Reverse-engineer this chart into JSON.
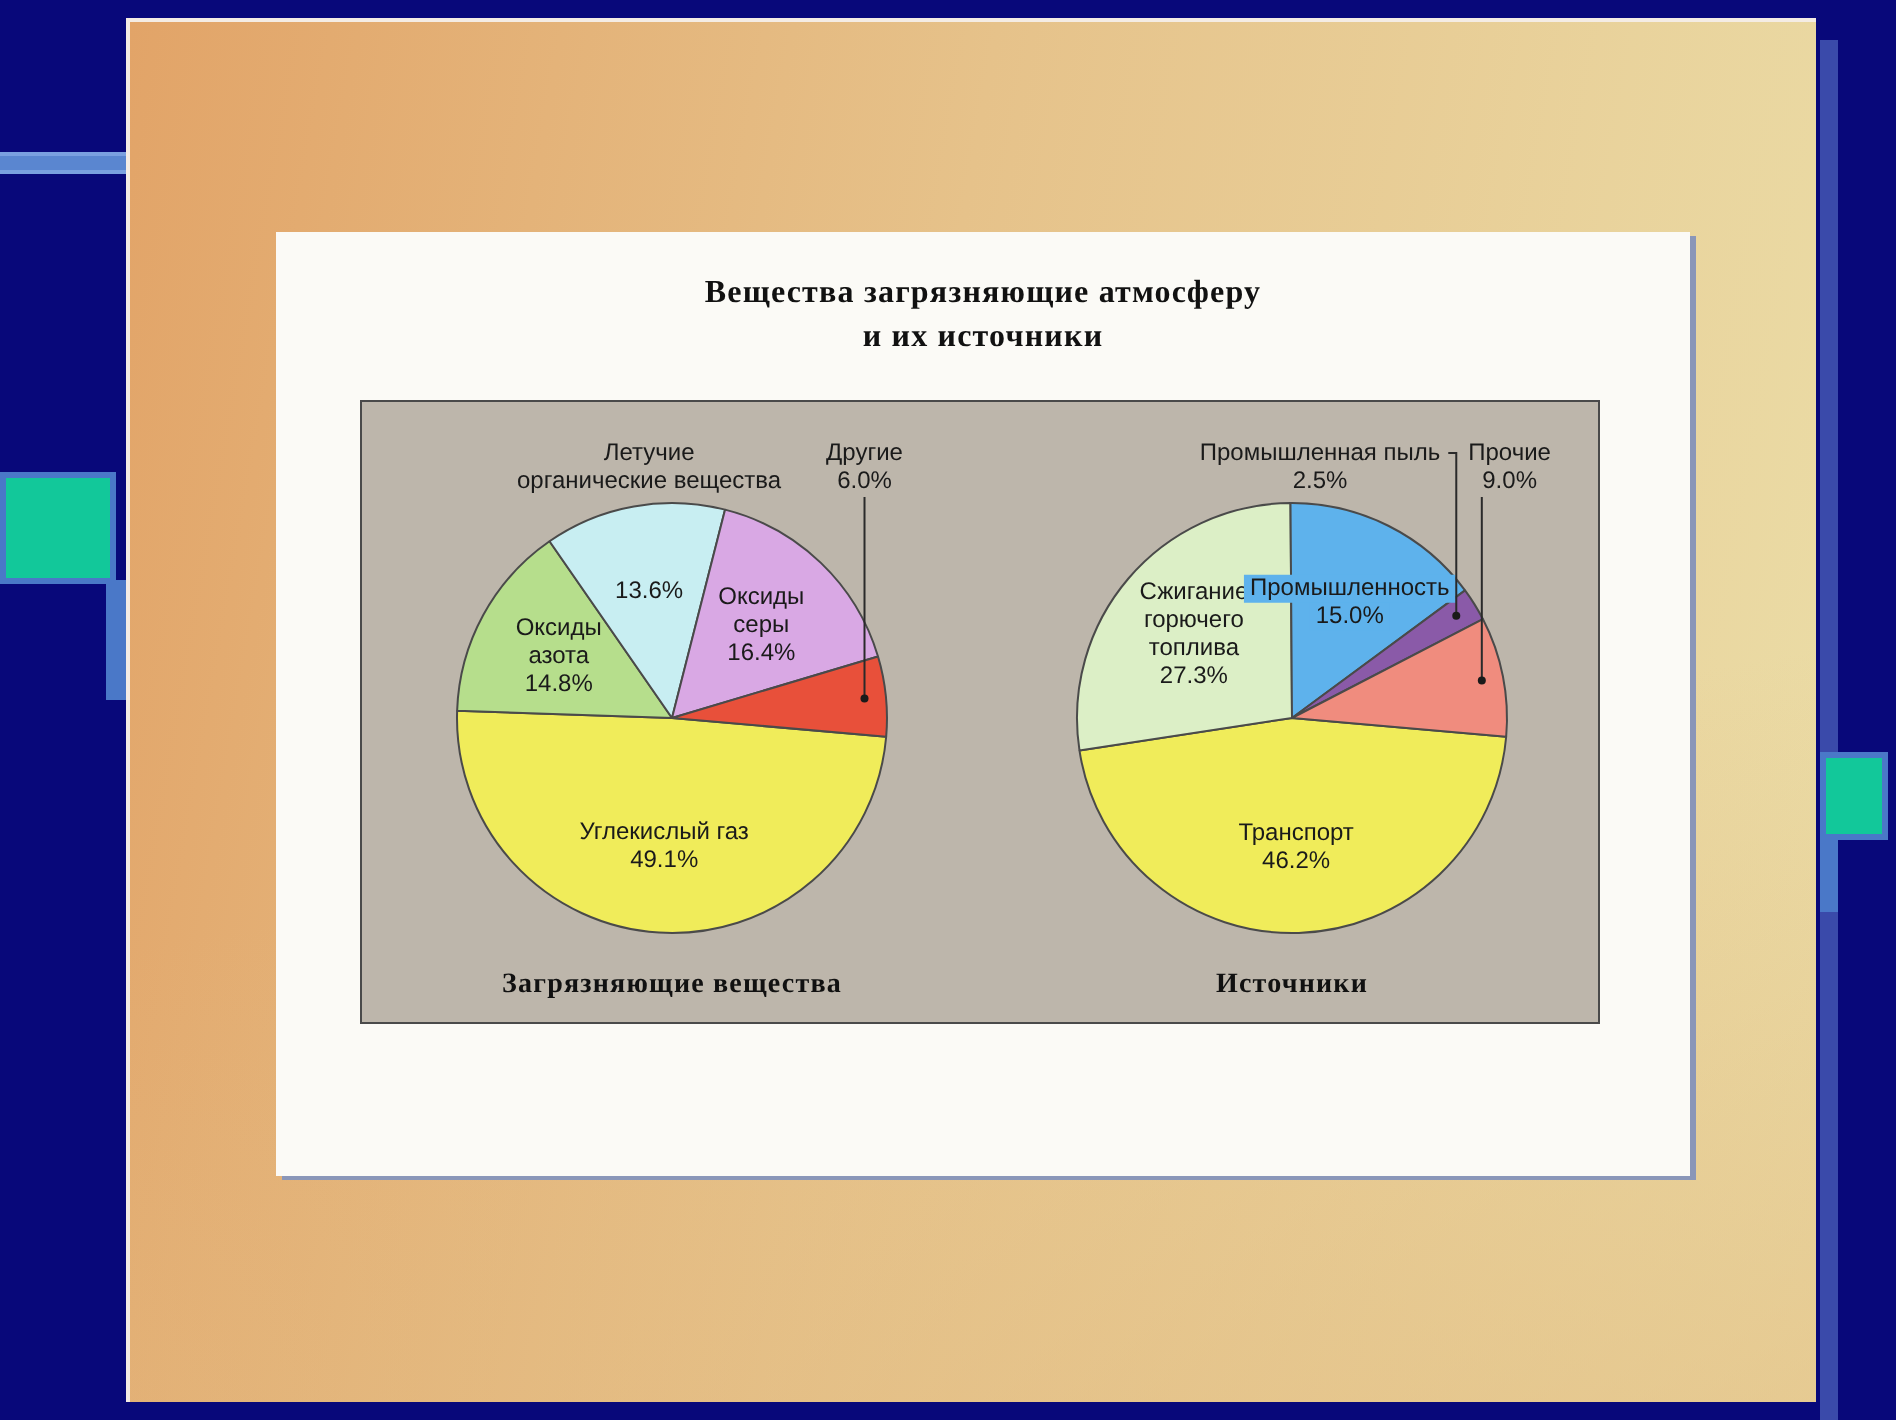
{
  "chart_data": [
    {
      "type": "pie",
      "title": "Вещества загрязняющие атмосферу\nи их источники",
      "subtitle": "Загрязняющие вещества",
      "categories": [
        "Углекислый газ",
        "Оксиды азота",
        "Летучие органические вещества",
        "Оксиды серы",
        "Другие"
      ],
      "values": [
        49.1,
        14.8,
        13.6,
        16.4,
        6.0
      ],
      "value_labels": [
        "49.1%",
        "14.8%",
        "13.6%",
        "16.4%",
        "6.0%"
      ],
      "colors": [
        "#f0ec5a",
        "#b6de8c",
        "#c8eef2",
        "#d9a8e4",
        "#e8503a"
      ]
    },
    {
      "type": "pie",
      "subtitle": "Источники",
      "categories": [
        "Транспорт",
        "Сжигание горючего топлива",
        "Промышленность",
        "Промышленная пыль",
        "Прочие"
      ],
      "values": [
        46.2,
        27.3,
        15.0,
        2.5,
        9.0
      ],
      "value_labels": [
        "46.2%",
        "27.3%",
        "15.0%",
        "2.5%",
        "9.0%"
      ],
      "colors": [
        "#f0ec5a",
        "#dcefc6",
        "#5eb2ec",
        "#8a5aa8",
        "#f08c7e"
      ]
    }
  ]
}
